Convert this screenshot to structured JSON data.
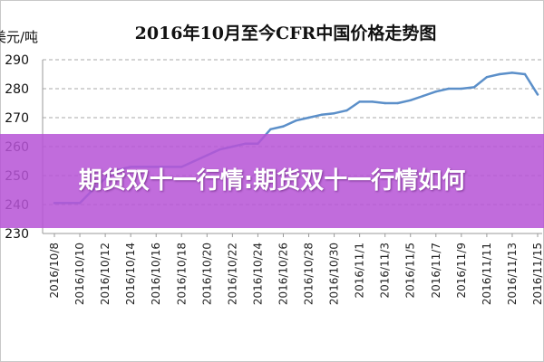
{
  "chart_data": {
    "type": "line",
    "title": "2016年10月至今CFR中国价格走势图",
    "ylabel": "美元/吨",
    "xlabel": "",
    "ylim": [
      230,
      290
    ],
    "yticks": [
      230,
      240,
      250,
      260,
      270,
      280,
      290
    ],
    "grid": "horizontal-dashed",
    "x_tick_labels": [
      "2016/10/8",
      "2016/10/10",
      "2016/10/12",
      "2016/10/14",
      "2016/10/16",
      "2016/10/18",
      "2016/10/20",
      "2016/10/22",
      "2016/10/24",
      "2016/10/26",
      "2016/10/28",
      "2016/10/30",
      "2016/11/1",
      "2016/11/3",
      "2016/11/5",
      "2016/11/7",
      "2016/11/9",
      "2016/11/11",
      "2016/11/13",
      "2016/11/15"
    ],
    "x": [
      "2016/10/8",
      "2016/10/9",
      "2016/10/10",
      "2016/10/11",
      "2016/10/12",
      "2016/10/13",
      "2016/10/14",
      "2016/10/15",
      "2016/10/16",
      "2016/10/17",
      "2016/10/18",
      "2016/10/19",
      "2016/10/20",
      "2016/10/21",
      "2016/10/22",
      "2016/10/23",
      "2016/10/24",
      "2016/10/25",
      "2016/10/26",
      "2016/10/27",
      "2016/10/28",
      "2016/10/29",
      "2016/10/30",
      "2016/10/31",
      "2016/11/1",
      "2016/11/2",
      "2016/11/3",
      "2016/11/4",
      "2016/11/5",
      "2016/11/6",
      "2016/11/7",
      "2016/11/8",
      "2016/11/9",
      "2016/11/10",
      "2016/11/11",
      "2016/11/12",
      "2016/11/13",
      "2016/11/14",
      "2016/11/15"
    ],
    "series": [
      {
        "values": [
          240.5,
          240.5,
          240.5,
          245,
          249,
          252,
          253,
          253,
          253,
          253,
          253,
          255,
          257,
          259,
          260,
          261,
          261,
          266,
          267,
          269,
          270,
          271,
          271.5,
          272.5,
          275.5,
          275.5,
          275,
          275,
          276,
          277.5,
          279,
          280,
          280,
          280.5,
          284,
          285,
          285.5,
          285,
          278
        ],
        "color": "#5b8fc9"
      }
    ]
  },
  "overlay": {
    "text": "期货双十一行情:期货双十一行情如何"
  }
}
